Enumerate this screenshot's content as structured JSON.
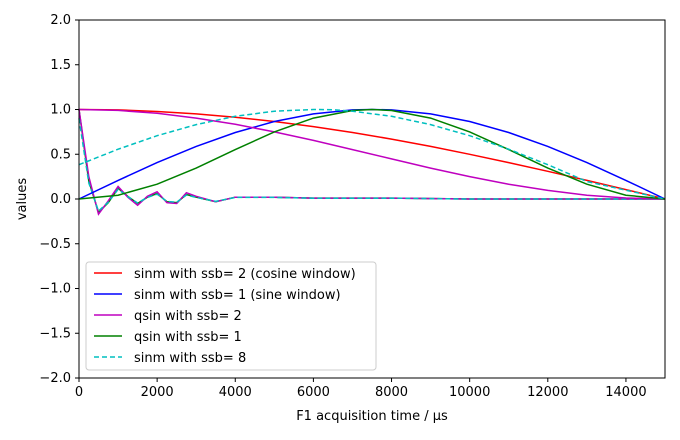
{
  "chart_data": {
    "type": "line",
    "title": "",
    "xlabel": "F1 acquisition time / μs",
    "ylabel": "values",
    "xlim": [
      0,
      15000
    ],
    "ylim": [
      -2.0,
      2.0
    ],
    "xticks": [
      0,
      2000,
      4000,
      6000,
      8000,
      10000,
      12000,
      14000
    ],
    "xtick_labels": [
      "0",
      "2000",
      "4000",
      "6000",
      "8000",
      "10000",
      "12000",
      "14000"
    ],
    "yticks": [
      -2.0,
      -1.5,
      -1.0,
      -0.5,
      0.0,
      0.5,
      1.0,
      1.5,
      2.0
    ],
    "ytick_labels": [
      "−2.0",
      "−1.5",
      "−1.0",
      "−0.5",
      "0.0",
      "0.5",
      "1.0",
      "1.5",
      "2.0"
    ],
    "grid": false,
    "legend_position": "lower-left",
    "series": [
      {
        "name": "sinm with ssb= 2 (cosine window)",
        "color": "#ff0000",
        "style": "solid",
        "x": [
          0,
          1000,
          2000,
          3000,
          4000,
          5000,
          6000,
          7000,
          8000,
          9000,
          10000,
          11000,
          12000,
          13000,
          14000,
          15000
        ],
        "y": [
          1.0,
          0.995,
          0.978,
          0.951,
          0.914,
          0.866,
          0.809,
          0.743,
          0.669,
          0.588,
          0.5,
          0.407,
          0.309,
          0.208,
          0.105,
          0.0
        ]
      },
      {
        "name": "sinm with ssb= 1 (sine window)",
        "color": "#0000ff",
        "style": "solid",
        "x": [
          0,
          1000,
          2000,
          3000,
          4000,
          5000,
          6000,
          7000,
          7500,
          8000,
          9000,
          10000,
          11000,
          12000,
          13000,
          14000,
          15000
        ],
        "y": [
          0.0,
          0.208,
          0.407,
          0.588,
          0.743,
          0.866,
          0.951,
          0.995,
          1.0,
          0.995,
          0.951,
          0.866,
          0.743,
          0.588,
          0.407,
          0.208,
          0.0
        ]
      },
      {
        "name": "qsin with ssb= 2",
        "color": "#bf00bf",
        "style": "solid",
        "x": [
          0,
          1000,
          2000,
          3000,
          4000,
          5000,
          6000,
          7000,
          8000,
          9000,
          10000,
          11000,
          12000,
          13000,
          14000,
          15000
        ],
        "y": [
          1.0,
          0.99,
          0.957,
          0.904,
          0.835,
          0.75,
          0.655,
          0.552,
          0.448,
          0.345,
          0.25,
          0.165,
          0.096,
          0.043,
          0.011,
          0.0
        ]
      },
      {
        "name": "qsin with ssb= 1",
        "color": "#008000",
        "style": "solid",
        "x": [
          0,
          1000,
          2000,
          3000,
          4000,
          5000,
          6000,
          7000,
          7500,
          8000,
          9000,
          10000,
          11000,
          12000,
          13000,
          14000,
          15000
        ],
        "y": [
          0.0,
          0.043,
          0.165,
          0.345,
          0.552,
          0.75,
          0.904,
          0.989,
          1.0,
          0.989,
          0.904,
          0.75,
          0.552,
          0.345,
          0.165,
          0.043,
          0.0
        ]
      },
      {
        "name": "sinm with ssb= 8",
        "color": "#00bfbf",
        "style": "dashed",
        "x": [
          0,
          1000,
          2000,
          3000,
          4000,
          5000,
          6000,
          6500,
          7000,
          8000,
          9000,
          10000,
          11000,
          12000,
          13000,
          14000,
          15000
        ],
        "y": [
          0.383,
          0.556,
          0.707,
          0.831,
          0.924,
          0.981,
          1.0,
          0.998,
          0.981,
          0.924,
          0.831,
          0.707,
          0.556,
          0.383,
          0.195,
          0.098,
          0.0
        ]
      }
    ],
    "oscillation": {
      "x": [
        0,
        250,
        500,
        750,
        1000,
        1250,
        1500,
        1750,
        2000,
        2250,
        2500,
        2750,
        3000,
        3500,
        4000,
        5000,
        6000,
        7000,
        8000,
        10000,
        12000,
        15000
      ],
      "y_magenta": [
        1.0,
        0.25,
        -0.17,
        -0.02,
        0.14,
        0.02,
        -0.07,
        0.03,
        0.08,
        -0.04,
        -0.05,
        0.07,
        0.03,
        -0.03,
        0.02,
        0.02,
        0.01,
        0.01,
        0.01,
        0.0,
        0.0,
        0.0
      ],
      "y_green": [
        1.0,
        0.2,
        -0.15,
        -0.04,
        0.12,
        0.03,
        -0.05,
        0.02,
        0.06,
        -0.03,
        -0.04,
        0.05,
        0.02,
        -0.03,
        0.02,
        0.02,
        0.01,
        0.01,
        0.01,
        0.0,
        0.0,
        0.0
      ]
    }
  }
}
